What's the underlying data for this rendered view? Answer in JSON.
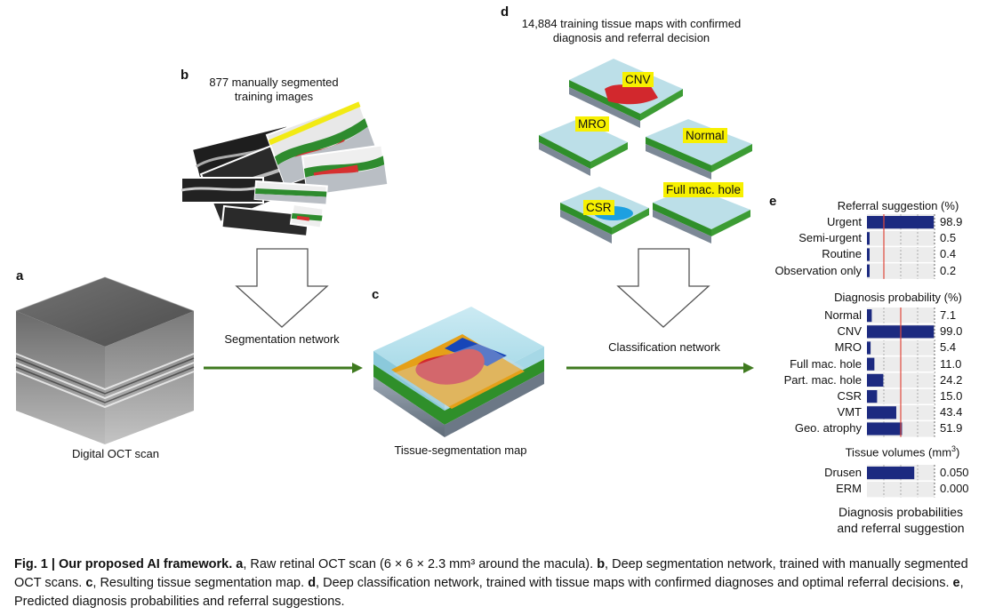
{
  "panels": {
    "a": {
      "letter": "a",
      "caption": "Digital OCT scan"
    },
    "b": {
      "letter": "b",
      "caption": "877 manually segmented\ntraining images"
    },
    "c": {
      "letter": "c",
      "caption": "Tissue-segmentation map"
    },
    "d": {
      "letter": "d",
      "caption": "14,884 training tissue maps with confirmed\ndiagnosis and referral decision",
      "labels": [
        "CNV",
        "MRO",
        "Normal",
        "CSR",
        "Full mac. hole"
      ]
    },
    "e": {
      "letter": "e",
      "caption": "Diagnosis probabilities\nand referral suggestion"
    }
  },
  "arrows": {
    "segmentation": "Segmentation network",
    "classification": "Classification network"
  },
  "colors": {
    "arrow_green": "#3f7a1f",
    "bar_navy": "#1c2a80",
    "threshold_red": "#e0483c",
    "highlight_yellow": "#f7f000"
  },
  "referral": {
    "title": "Referral suggestion (%)",
    "rows": [
      {
        "label": "Urgent",
        "value": "98.9",
        "fraction": 0.989
      },
      {
        "label": "Semi-urgent",
        "value": "0.5",
        "fraction": 0.005
      },
      {
        "label": "Routine",
        "value": "0.4",
        "fraction": 0.004
      },
      {
        "label": "Observation only",
        "value": "0.2",
        "fraction": 0.002
      }
    ]
  },
  "diagnosis": {
    "title": "Diagnosis probability (%)",
    "rows": [
      {
        "label": "Normal",
        "value": "7.1",
        "fraction": 0.071
      },
      {
        "label": "CNV",
        "value": "99.0",
        "fraction": 0.99
      },
      {
        "label": "MRO",
        "value": "5.4",
        "fraction": 0.054
      },
      {
        "label": "Full mac. hole",
        "value": "11.0",
        "fraction": 0.11
      },
      {
        "label": "Part. mac. hole",
        "value": "24.2",
        "fraction": 0.242
      },
      {
        "label": "CSR",
        "value": "15.0",
        "fraction": 0.15
      },
      {
        "label": "VMT",
        "value": "43.4",
        "fraction": 0.434
      },
      {
        "label": "Geo. atrophy",
        "value": "51.9",
        "fraction": 0.519
      }
    ]
  },
  "volumes": {
    "title_prefix": "Tissue volumes (mm",
    "title_sup": "3",
    "title_suffix": ")",
    "rows": [
      {
        "label": "Drusen",
        "value": "0.050",
        "fraction": 0.7
      },
      {
        "label": "ERM",
        "value": "0.000",
        "fraction": 0.0
      }
    ]
  },
  "caption": {
    "lead": "Fig. 1 | Our proposed AI framework.",
    "parts": [
      {
        "letter": "a",
        "text": ", Raw retinal OCT scan (6 × 6 × 2.3 mm³ around the macula). "
      },
      {
        "letter": "b",
        "text": ", Deep segmentation network, trained with manually segmented OCT scans. "
      },
      {
        "letter": "c",
        "text": ", Resulting tissue segmentation map. "
      },
      {
        "letter": "d",
        "text": ", Deep classification network, trained with tissue maps with confirmed diagnoses and optimal referral decisions. "
      },
      {
        "letter": "e",
        "text": ", Predicted diagnosis probabilities and referral suggestions."
      }
    ]
  }
}
